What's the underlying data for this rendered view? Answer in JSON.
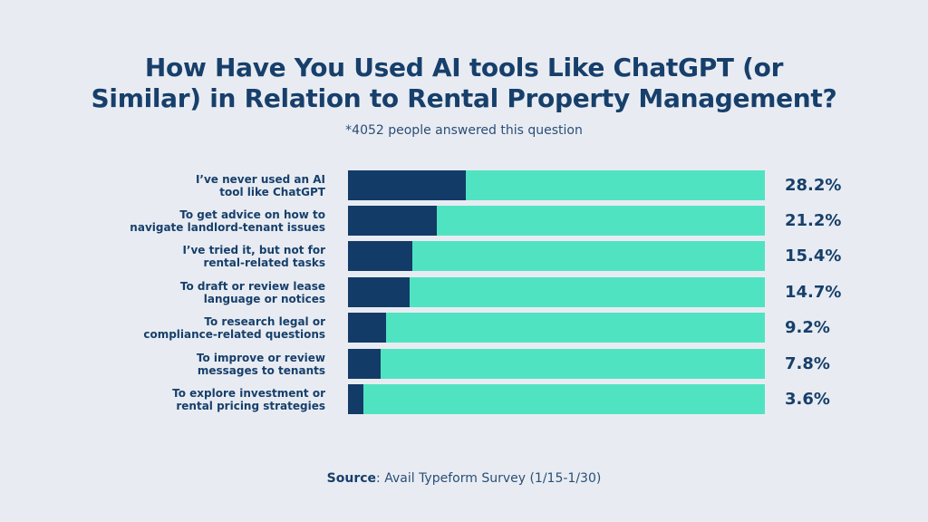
{
  "header": {
    "title_line1": "How Have You Used AI tools Like ChatGPT (or",
    "title_line2": "Similar) in Relation to Rental Property Management?",
    "subtitle": "*4052 people answered this question"
  },
  "colors": {
    "background": "#e8ecf2",
    "bar_fill": "#133b68",
    "bar_track": "#50e3c2",
    "text": "#173f6b"
  },
  "rows": [
    {
      "label1": "I’ve never used an AI",
      "label2": "tool like ChatGPT",
      "value": 28.2,
      "value_label": "28.2%"
    },
    {
      "label1": "To get advice on how to",
      "label2": "navigate landlord-tenant issues",
      "value": 21.2,
      "value_label": "21.2%"
    },
    {
      "label1": "I’ve tried it, but not for",
      "label2": "rental-related tasks",
      "value": 15.4,
      "value_label": "15.4%"
    },
    {
      "label1": "To draft or review lease",
      "label2": "language or notices",
      "value": 14.7,
      "value_label": "14.7%"
    },
    {
      "label1": "To research legal or",
      "label2": "compliance-related questions",
      "value": 9.2,
      "value_label": "9.2%"
    },
    {
      "label1": "To improve or review",
      "label2": "messages to tenants",
      "value": 7.8,
      "value_label": "7.8%"
    },
    {
      "label1": "To explore investment or",
      "label2": "rental pricing strategies",
      "value": 3.6,
      "value_label": "3.6%"
    }
  ],
  "footer": {
    "source_label": "Source",
    "source_text": ": Avail Typeform Survey (1/15-1/30)"
  },
  "chart_data": {
    "type": "bar",
    "orientation": "horizontal",
    "title": "How Have You Used AI tools Like ChatGPT (or Similar) in Relation to Rental Property Management?",
    "subtitle": "*4052 people answered this question",
    "categories": [
      "I’ve never used an AI tool like ChatGPT",
      "To get advice on how to navigate landlord-tenant issues",
      "I’ve tried it, but not for rental-related tasks",
      "To draft or review lease language or notices",
      "To research legal or compliance-related questions",
      "To improve or review messages to tenants",
      "To explore investment or rental pricing strategies"
    ],
    "values": [
      28.2,
      21.2,
      15.4,
      14.7,
      9.2,
      7.8,
      3.6
    ],
    "unit": "%",
    "xlabel": "",
    "ylabel": "",
    "xlim": [
      0,
      100
    ],
    "grid": false,
    "legend": null,
    "source": "Source: Avail Typeform Survey (1/15-1/30)"
  }
}
